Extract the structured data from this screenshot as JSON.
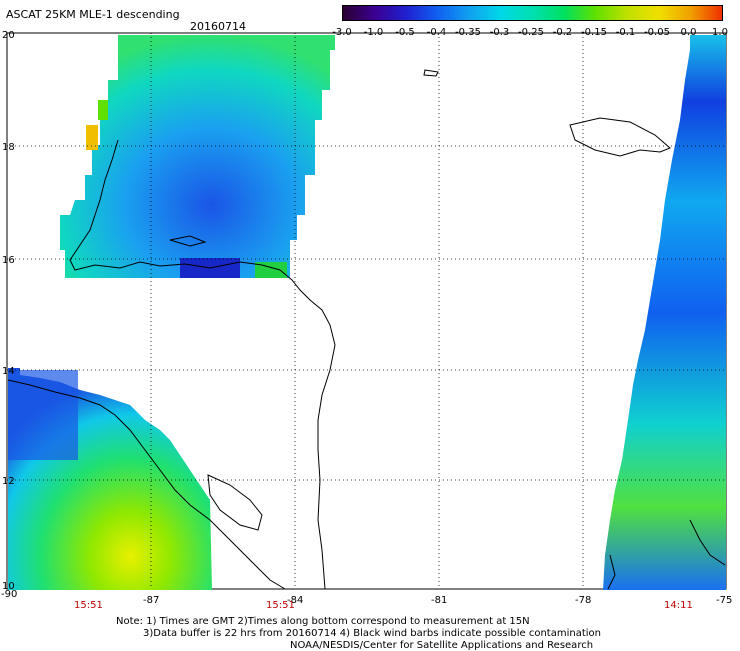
{
  "header": {
    "title": "ASCAT 25KM MLE-1 descending",
    "date": "20160714"
  },
  "colorbar": {
    "labels": [
      "-3.0",
      "-1.0",
      "-0.5",
      "-0.4",
      "-0.35",
      "-0.3",
      "-0.25",
      "-0.2",
      "-0.15",
      "-0.1",
      "-0.05",
      "0.0",
      "1.0"
    ],
    "colors": [
      "#2a0030",
      "#3a0090",
      "#2020d0",
      "#1060f0",
      "#10a0f0",
      "#00d8e8",
      "#00e0b0",
      "#00e060",
      "#60e000",
      "#c0e000",
      "#f0e000",
      "#f0a000",
      "#f03000"
    ]
  },
  "axes": {
    "x_ticks": [
      "-90",
      "-87",
      "-84",
      "-81",
      "-78",
      "-75"
    ],
    "y_ticks": [
      "20",
      "18",
      "16",
      "14",
      "12",
      "10"
    ]
  },
  "pass_times": [
    "15:51",
    "15:51",
    "14:11"
  ],
  "notes": [
    "Note: 1) Times are GMT 2)Times along bottom correspond to measurement at 15N",
    "3)Data buffer is 22 hrs from 20160714 4) Black wind barbs indicate possible contamination",
    "NOAA/NESDIS/Center for Satellite Applications and Research"
  ]
}
